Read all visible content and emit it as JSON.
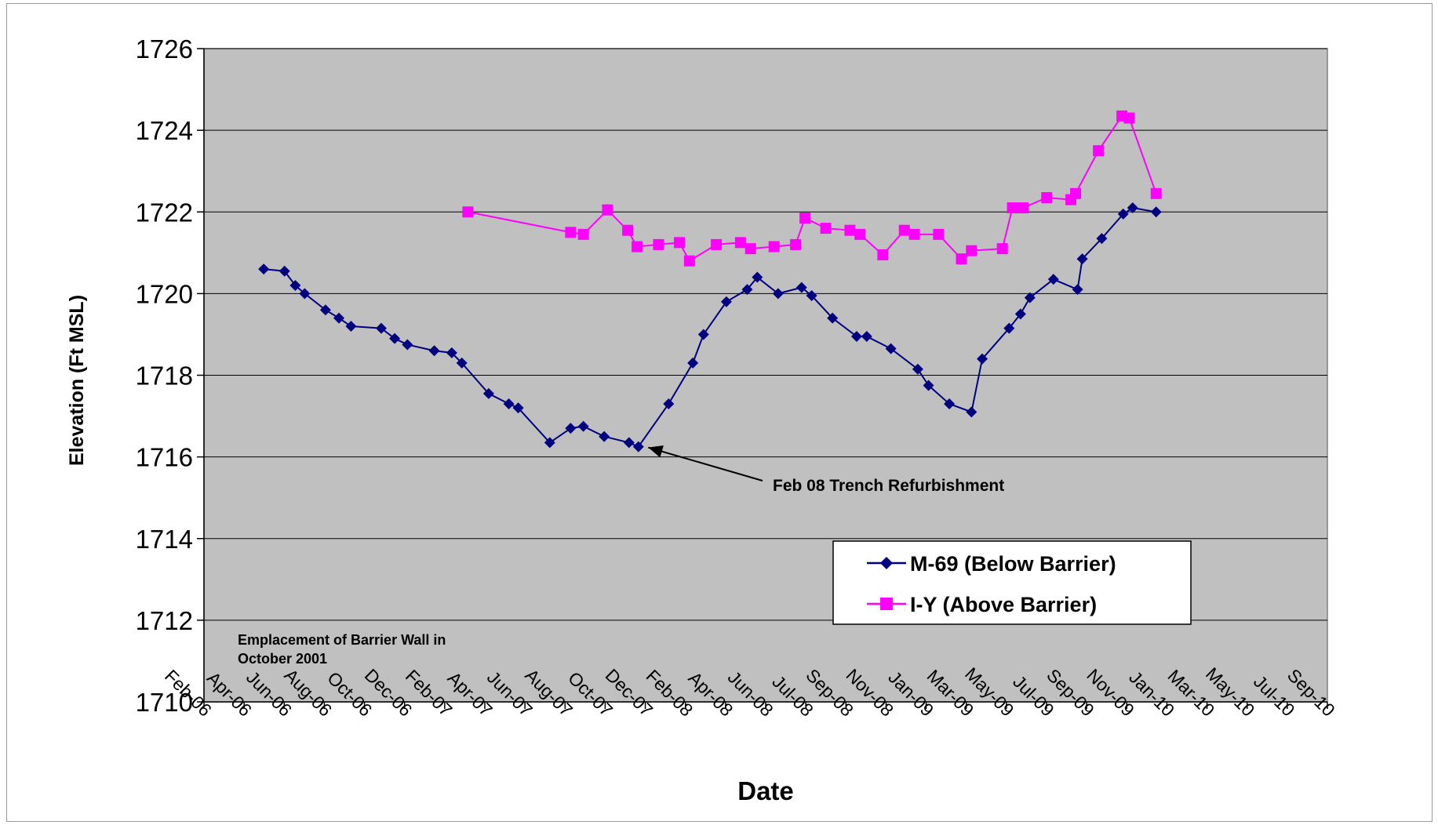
{
  "chart_data": {
    "type": "line",
    "title": "",
    "xlabel": "Date",
    "ylabel": "Elevation (Ft MSL)",
    "ylim": [
      1710,
      1726
    ],
    "y_ticks": [
      "1710",
      "1712",
      "1714",
      "1716",
      "1718",
      "1720",
      "1722",
      "1724",
      "1726"
    ],
    "xlim": [
      "2006-02-01",
      "2010-09-01"
    ],
    "x_ticks": [
      "Feb-06",
      "Apr-06",
      "Jun-06",
      "Aug-06",
      "Oct-06",
      "Dec-06",
      "Feb-07",
      "Apr-07",
      "Jun-07",
      "Aug-07",
      "Oct-07",
      "Dec-07",
      "Feb-08",
      "Apr-08",
      "Jun-08",
      "Jul-08",
      "Sep-08",
      "Nov-08",
      "Jan-09",
      "Mar-09",
      "May-09",
      "Jul-09",
      "Sep-09",
      "Nov-09",
      "Jan-10",
      "Mar-10",
      "May-10",
      "Jul-10",
      "Sep-10"
    ],
    "grid": "horizontal",
    "legend_position": "bottom-right",
    "background_color": "#c0c0c0",
    "series": [
      {
        "name": "M-69 (Below Barrier)",
        "color": "#000080",
        "marker": "diamond",
        "points": [
          [
            "2006-05-01",
            1720.6
          ],
          [
            "2006-06-01",
            1720.55
          ],
          [
            "2006-06-17",
            1720.2
          ],
          [
            "2006-07-01",
            1720.0
          ],
          [
            "2006-08-01",
            1719.6
          ],
          [
            "2006-08-21",
            1719.4
          ],
          [
            "2006-09-08",
            1719.2
          ],
          [
            "2006-10-23",
            1719.15
          ],
          [
            "2006-11-12",
            1718.9
          ],
          [
            "2006-12-01",
            1718.75
          ],
          [
            "2007-01-10",
            1718.6
          ],
          [
            "2007-02-05",
            1718.55
          ],
          [
            "2007-02-20",
            1718.3
          ],
          [
            "2007-04-01",
            1717.55
          ],
          [
            "2007-05-01",
            1717.3
          ],
          [
            "2007-05-15",
            1717.2
          ],
          [
            "2007-07-01",
            1716.35
          ],
          [
            "2007-08-01",
            1716.7
          ],
          [
            "2007-08-20",
            1716.75
          ],
          [
            "2007-09-20",
            1716.5
          ],
          [
            "2007-10-27",
            1716.35
          ],
          [
            "2007-11-10",
            1716.25
          ],
          [
            "2007-12-25",
            1717.3
          ],
          [
            "2008-01-30",
            1718.3
          ],
          [
            "2008-02-15",
            1719.0
          ],
          [
            "2008-03-20",
            1719.8
          ],
          [
            "2008-04-20",
            1720.1
          ],
          [
            "2008-05-05",
            1720.4
          ],
          [
            "2008-06-05",
            1720.0
          ],
          [
            "2008-07-10",
            1720.15
          ],
          [
            "2008-07-25",
            1719.95
          ],
          [
            "2008-08-25",
            1719.4
          ],
          [
            "2008-09-30",
            1718.95
          ],
          [
            "2008-10-15",
            1718.95
          ],
          [
            "2008-11-20",
            1718.65
          ],
          [
            "2008-12-30",
            1718.15
          ],
          [
            "2009-01-15",
            1717.75
          ],
          [
            "2009-02-15",
            1717.3
          ],
          [
            "2009-03-20",
            1717.1
          ],
          [
            "2009-04-05",
            1718.4
          ],
          [
            "2009-05-15",
            1719.15
          ],
          [
            "2009-06-01",
            1719.5
          ],
          [
            "2009-06-15",
            1719.9
          ],
          [
            "2009-07-20",
            1720.35
          ],
          [
            "2009-08-25",
            1720.1
          ],
          [
            "2009-09-01",
            1720.85
          ],
          [
            "2009-09-30",
            1721.35
          ],
          [
            "2009-11-01",
            1721.95
          ],
          [
            "2009-11-15",
            1722.1
          ],
          [
            "2009-12-20",
            1722.0
          ]
        ]
      },
      {
        "name": "I-Y (Above Barrier)",
        "color": "#ff00ff",
        "marker": "square",
        "points": [
          [
            "2007-03-01",
            1722.0
          ],
          [
            "2007-08-01",
            1721.5
          ],
          [
            "2007-08-20",
            1721.45
          ],
          [
            "2007-09-25",
            1722.05
          ],
          [
            "2007-10-25",
            1721.55
          ],
          [
            "2007-11-08",
            1721.15
          ],
          [
            "2007-12-10",
            1721.2
          ],
          [
            "2008-01-10",
            1721.25
          ],
          [
            "2008-01-25",
            1720.8
          ],
          [
            "2008-03-05",
            1721.2
          ],
          [
            "2008-04-10",
            1721.25
          ],
          [
            "2008-04-25",
            1721.1
          ],
          [
            "2008-05-30",
            1721.15
          ],
          [
            "2008-07-01",
            1721.2
          ],
          [
            "2008-07-15",
            1721.85
          ],
          [
            "2008-08-15",
            1721.6
          ],
          [
            "2008-09-20",
            1721.55
          ],
          [
            "2008-10-05",
            1721.45
          ],
          [
            "2008-11-08",
            1720.95
          ],
          [
            "2008-12-10",
            1721.55
          ],
          [
            "2008-12-25",
            1721.45
          ],
          [
            "2009-01-30",
            1721.45
          ],
          [
            "2009-03-05",
            1720.85
          ],
          [
            "2009-03-20",
            1721.05
          ],
          [
            "2009-05-05",
            1721.1
          ],
          [
            "2009-05-20",
            1722.1
          ],
          [
            "2009-06-05",
            1722.1
          ],
          [
            "2009-07-10",
            1722.35
          ],
          [
            "2009-08-15",
            1722.3
          ],
          [
            "2009-08-22",
            1722.45
          ],
          [
            "2009-09-25",
            1723.5
          ],
          [
            "2009-10-30",
            1724.35
          ],
          [
            "2009-11-10",
            1724.3
          ],
          [
            "2009-12-20",
            1722.45
          ]
        ]
      }
    ],
    "annotations": [
      {
        "text": "Feb 08 Trench Refurbishment",
        "arrow_to": [
          "2007-11-20",
          1716.0
        ]
      },
      {
        "text": "Emplacement of Barrier Wall in\nOctober 2001"
      }
    ]
  }
}
